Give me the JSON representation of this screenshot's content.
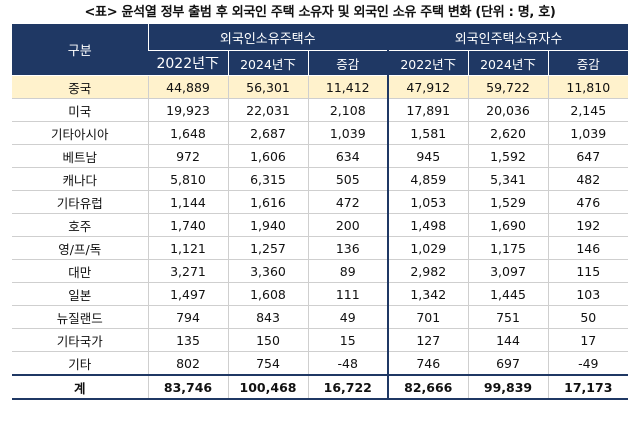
{
  "caption": "<표> 윤석열 정부 출범 후 외국인 주택 소유자 및 외국인 소유 주택 변화 (단위 : 명, 호)",
  "header": {
    "category": "구분",
    "group1": "외국인소유주택수",
    "group2": "외국인주택소유자수",
    "sub": [
      "2022년下",
      "2024년下",
      "증감",
      "2022년下",
      "2024년下",
      "증감"
    ]
  },
  "rows": [
    {
      "name": "중국",
      "values": [
        "44,889",
        "56,301",
        "11,412",
        "47,912",
        "59,722",
        "11,810"
      ]
    },
    {
      "name": "미국",
      "values": [
        "19,923",
        "22,031",
        "2,108",
        "17,891",
        "20,036",
        "2,145"
      ]
    },
    {
      "name": "기타아시아",
      "values": [
        "1,648",
        "2,687",
        "1,039",
        "1,581",
        "2,620",
        "1,039"
      ]
    },
    {
      "name": "베트남",
      "values": [
        "972",
        "1,606",
        "634",
        "945",
        "1,592",
        "647"
      ]
    },
    {
      "name": "캐나다",
      "values": [
        "5,810",
        "6,315",
        "505",
        "4,859",
        "5,341",
        "482"
      ]
    },
    {
      "name": "기타유럽",
      "values": [
        "1,144",
        "1,616",
        "472",
        "1,053",
        "1,529",
        "476"
      ]
    },
    {
      "name": "호주",
      "values": [
        "1,740",
        "1,940",
        "200",
        "1,498",
        "1,690",
        "192"
      ]
    },
    {
      "name": "영/프/독",
      "values": [
        "1,121",
        "1,257",
        "136",
        "1,029",
        "1,175",
        "146"
      ]
    },
    {
      "name": "대만",
      "values": [
        "3,271",
        "3,360",
        "89",
        "2,982",
        "3,097",
        "115"
      ]
    },
    {
      "name": "일본",
      "values": [
        "1,497",
        "1,608",
        "111",
        "1,342",
        "1,445",
        "103"
      ]
    },
    {
      "name": "뉴질랜드",
      "values": [
        "794",
        "843",
        "49",
        "701",
        "751",
        "50"
      ]
    },
    {
      "name": "기타국가",
      "values": [
        "135",
        "150",
        "15",
        "127",
        "144",
        "17"
      ]
    },
    {
      "name": "기타",
      "values": [
        "802",
        "754",
        "-48",
        "746",
        "697",
        "-49"
      ]
    }
  ],
  "total": {
    "name": "계",
    "values": [
      "83,746",
      "100,468",
      "16,722",
      "82,666",
      "99,839",
      "17,173"
    ]
  },
  "highlight_color": "#fff2cc",
  "header_color": "#1f3864"
}
